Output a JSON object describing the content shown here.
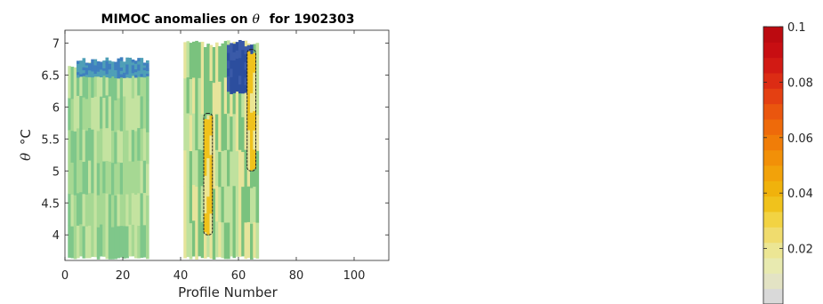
{
  "chart_data": {
    "type": "heatmap",
    "title_main": "MIMOC anomalies on",
    "title_symbol": "θ",
    "title_suffix": "for 1902303",
    "xlabel": "Profile Number",
    "ylabel_symbol": "θ",
    "ylabel_unit": "°C",
    "xlim": [
      0,
      112
    ],
    "ylim": [
      3.6,
      7.2
    ],
    "x_ticks": [
      0,
      20,
      40,
      60,
      80,
      100
    ],
    "y_ticks": [
      4,
      4.5,
      5,
      5.5,
      6,
      6.5,
      7
    ],
    "y_tick_labels": [
      "4",
      "4.5",
      "5",
      "5.5",
      "6",
      "6.5",
      "7"
    ],
    "colorbar": {
      "range": [
        0,
        0.1
      ],
      "ticks": [
        0.02,
        0.04,
        0.06,
        0.08,
        0.1
      ],
      "tick_labels": [
        "0.02",
        "0.04",
        "0.06",
        "0.08",
        "0.1"
      ],
      "colors": [
        "#d9d9d9",
        "#e3e3c4",
        "#e8eab0",
        "#ece694",
        "#f0dc6e",
        "#f2d343",
        "#f0c21c",
        "#f0b20c",
        "#f2a20a",
        "#f29008",
        "#f07d08",
        "#ee6a0a",
        "#ea560e",
        "#e44012",
        "#dc2c14",
        "#d21a14",
        "#c80e12",
        "#bc0a10"
      ]
    },
    "data_description_note": "",
    "regions": [
      {
        "x0": 1,
        "x1": 29,
        "y0": 3.62,
        "y1": 6.7,
        "anomaly_level": "low",
        "colors": [
          "#7fc78a",
          "#a6d893",
          "#c4e3a0"
        ]
      },
      {
        "x0": 4,
        "x1": 29,
        "y0": 6.45,
        "y1": 6.78,
        "anomaly_level": "lowest",
        "colors": [
          "#4f9fb7",
          "#3f7fbf"
        ]
      },
      {
        "x0": 41,
        "x1": 67,
        "y0": 3.62,
        "y1": 7.05,
        "anomaly_level": "low-to-mid",
        "colors": [
          "#7ac27e",
          "#bfe19e",
          "#e6e49b"
        ]
      },
      {
        "x0": 56,
        "x1": 65,
        "y0": 6.2,
        "y1": 7.05,
        "anomaly_level": "lowest",
        "colors": [
          "#3a5aa8",
          "#2c4e9e"
        ]
      },
      {
        "x0": 48,
        "x1": 51,
        "y0": 4.0,
        "y1": 5.9,
        "anomaly_level": "mid",
        "colors": [
          "#f0c21c",
          "#ece694"
        ]
      },
      {
        "x0": 63,
        "x1": 66,
        "y0": 5.0,
        "y1": 6.9,
        "anomaly_level": "mid",
        "colors": [
          "#f0c21c",
          "#ece694"
        ]
      }
    ]
  }
}
